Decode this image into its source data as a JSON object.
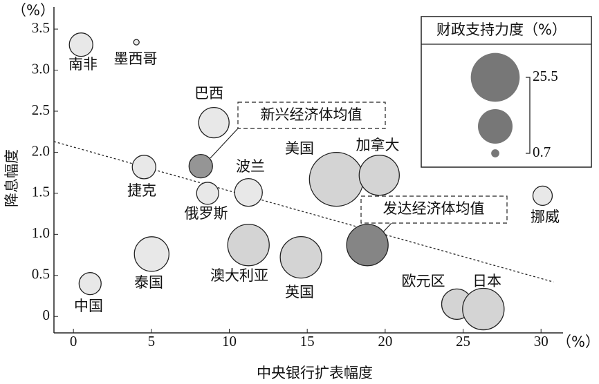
{
  "chart_data": {
    "type": "bubble",
    "x_label": "中央银行扩表幅度",
    "y_label": "降息幅度",
    "x_unit": "（%）",
    "y_unit": "（%）",
    "xlim": [
      -1.25,
      31.5
    ],
    "ylim": [
      -0.2,
      3.77
    ],
    "xticks": [
      0,
      5,
      10,
      15,
      20,
      25,
      30
    ],
    "yticks": [
      0,
      0.5,
      {
        "value": 1,
        "label": "1.0"
      },
      1.5,
      {
        "value": 2,
        "label": "2.0"
      },
      2.5,
      {
        "value": 3,
        "label": "3.0"
      },
      3.5
    ],
    "names": [
      "南非",
      "墨西哥",
      "巴西",
      "捷克",
      "新兴经济体均值",
      "俄罗斯",
      "波兰",
      "美国",
      "加拿大",
      "挪威",
      "发达经济体均值",
      "澳大利亚",
      "英国",
      "泰国",
      "中国",
      "欧元区",
      "日本"
    ],
    "x": [
      0.49,
      4.04,
      9.01,
      4.53,
      8.17,
      8.61,
      11.23,
      16.87,
      19.62,
      30.1,
      18.86,
      11.23,
      14.6,
      5.02,
      1.07,
      24.6,
      26.3
    ],
    "y": [
      3.31,
      3.34,
      2.36,
      1.82,
      1.83,
      1.5,
      1.51,
      1.67,
      1.72,
      1.47,
      0.87,
      0.87,
      0.72,
      0.76,
      0.4,
      0.15,
      0.09
    ],
    "sizes": [
      5.9,
      0.33,
      9.9,
      5.9,
      5.9,
      5.2,
      8.2,
      31,
      17.2,
      4.0,
      18.4,
      18.4,
      18.4,
      12.8,
      5.2,
      9.9,
      18.4
    ],
    "colors": [
      "#e8e8e8",
      "#e8e8e8",
      "#e8e8e8",
      "#e8e8e8",
      "#959595",
      "#e8e8e8",
      "#e8e8e8",
      "#d4d4d4",
      "#d4d4d4",
      "#e8e8e8",
      "#858585",
      "#d4d4d4",
      "#d4d4d4",
      "#e8e8e8",
      "#e8e8e8",
      "#d4d4d4",
      "#d4d4d4"
    ],
    "trend_line": {
      "x": [
        -1.25,
        30.8
      ],
      "y": [
        2.13,
        0.42
      ]
    },
    "legend": {
      "title": "财政支持力度（%）",
      "sizes": [
        25.5,
        12.75,
        0.7
      ],
      "color": "#777777"
    }
  }
}
